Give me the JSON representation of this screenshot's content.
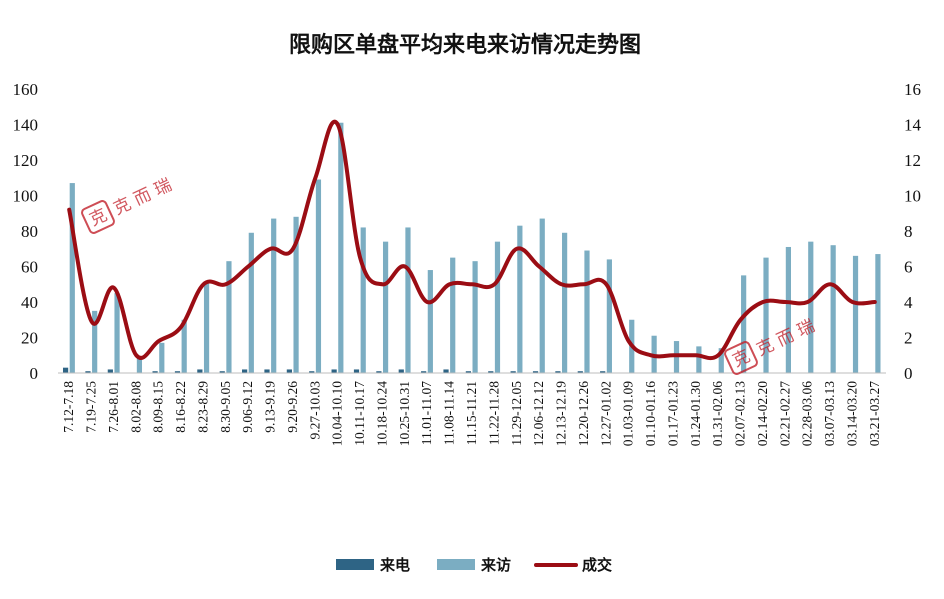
{
  "chart_data": {
    "type": "bar",
    "title": "限购区单盘平均来电来访情况走势图",
    "categories": [
      "7.12-7.18",
      "7.19-7.25",
      "7.26-8.01",
      "8.02-8.08",
      "8.09-8.15",
      "8.16-8.22",
      "8.23-8.29",
      "8.30-9.05",
      "9.06-9.12",
      "9.13-9.19",
      "9.20-9.26",
      "9.27-10.03",
      "10.04-10.10",
      "10.11-10.17",
      "10.18-10.24",
      "10.25-10.31",
      "11.01-11.07",
      "11.08-11.14",
      "11.15-11.21",
      "11.22-11.28",
      "11.29-12.05",
      "12.06-12.12",
      "12.13-12.19",
      "12.20-12.26",
      "12.27-01.02",
      "01.03-01.09",
      "01.10-01.16",
      "01.17-01.23",
      "01.24-01.30",
      "01.31-02.06",
      "02.07-02.13",
      "02.14-02.20",
      "02.21-02.27",
      "02.28-03.06",
      "03.07-03.13",
      "03.14-03.20",
      "03.21-03.27"
    ],
    "series": [
      {
        "name": "来电",
        "type": "bar",
        "axis": "left",
        "color": "#2e6485",
        "values": [
          3,
          1,
          2,
          0,
          1,
          1,
          2,
          1,
          2,
          2,
          2,
          1,
          2,
          2,
          1,
          2,
          1,
          2,
          1,
          1,
          1,
          1,
          1,
          1,
          1,
          0,
          0,
          0,
          0,
          0,
          0,
          0,
          0,
          0,
          0,
          0,
          0
        ]
      },
      {
        "name": "来访",
        "type": "bar",
        "axis": "left",
        "color": "#7badc2",
        "values": [
          107,
          35,
          45,
          9,
          17,
          30,
          51,
          63,
          79,
          87,
          88,
          109,
          141,
          82,
          74,
          82,
          58,
          65,
          63,
          74,
          83,
          87,
          79,
          69,
          64,
          30,
          21,
          18,
          15,
          14,
          55,
          65,
          71,
          74,
          72,
          66,
          67
        ]
      },
      {
        "name": "成交",
        "type": "line",
        "axis": "right",
        "color": "#9b0d14",
        "values": [
          9.2,
          2.9,
          4.8,
          1.0,
          1.8,
          2.6,
          5.0,
          5.0,
          6.0,
          7.0,
          7.0,
          11.0,
          14.0,
          6.5,
          5.0,
          6.0,
          4.0,
          5.0,
          5.0,
          5.0,
          7.0,
          6.0,
          5.0,
          5.0,
          5.0,
          1.8,
          1.0,
          1.0,
          1.0,
          1.0,
          3.0,
          4.0,
          4.0,
          4.0,
          5.0,
          4.0,
          4.0
        ]
      }
    ],
    "y_left": {
      "min": 0,
      "max": 160,
      "ticks": [
        0,
        20,
        40,
        60,
        80,
        100,
        120,
        140,
        160
      ]
    },
    "y_right": {
      "min": 0,
      "max": 16,
      "ticks": [
        0,
        2,
        4,
        6,
        8,
        10,
        12,
        14,
        16
      ]
    },
    "legend": {
      "position": "bottom",
      "items": [
        "来电",
        "来访",
        "成交"
      ]
    },
    "grid": false
  },
  "watermark": {
    "seal": "克",
    "text": "克 而 瑞"
  }
}
